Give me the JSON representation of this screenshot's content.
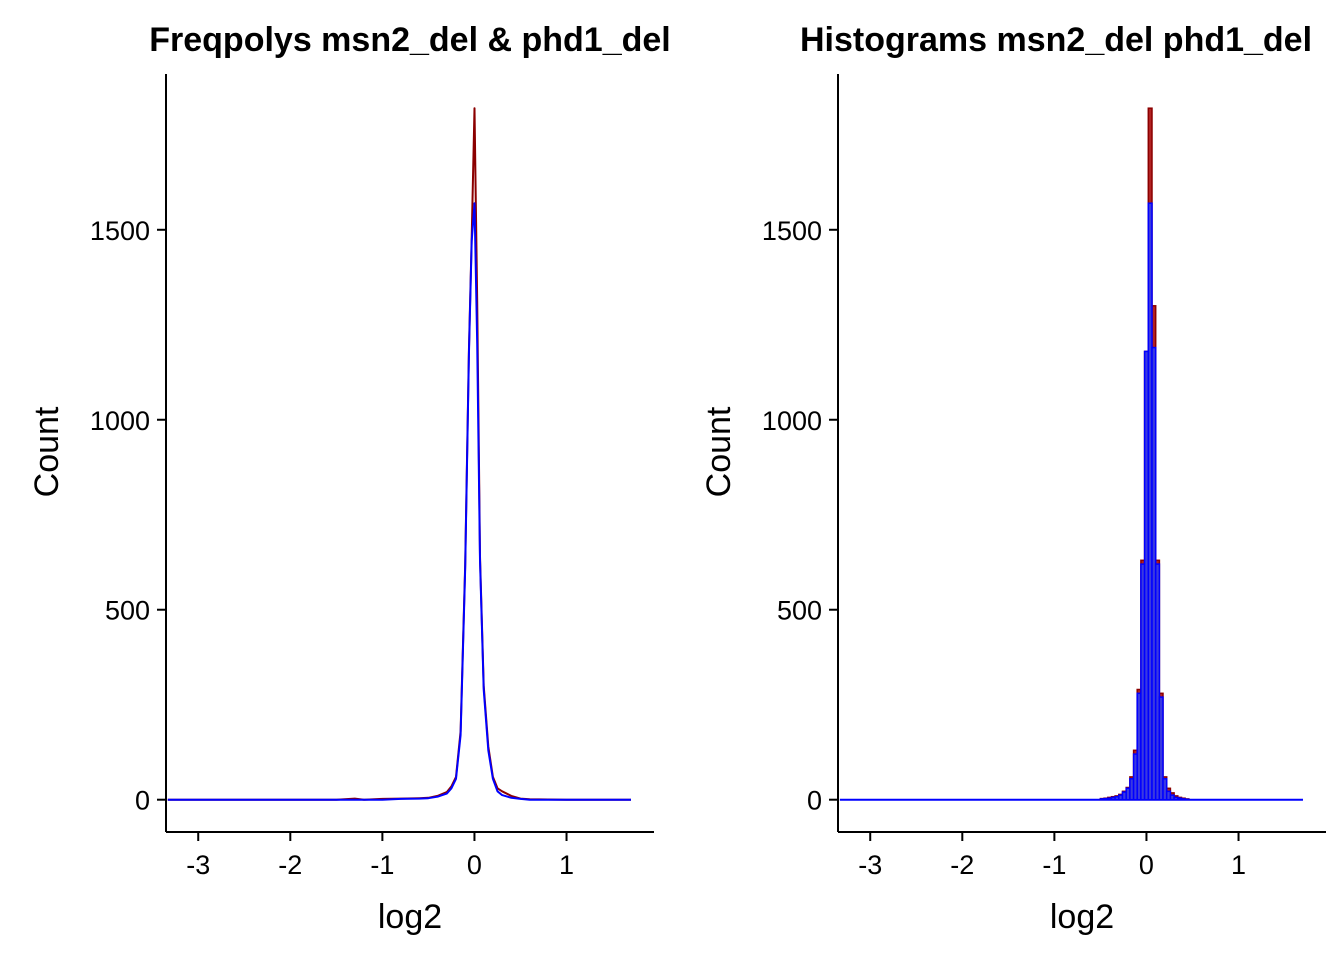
{
  "chart_data": [
    {
      "type": "line",
      "title": "Freqpolys msn2_del & phd1_del",
      "xlabel": "log2",
      "ylabel": "Count",
      "xlim": [
        -3.35,
        1.95
      ],
      "ylim": [
        -85,
        1910
      ],
      "xticks": [
        -3,
        -2,
        -1,
        0,
        1
      ],
      "yticks": [
        0,
        500,
        1000,
        1500
      ],
      "grid": false,
      "series": [
        {
          "color": "#8B0000",
          "x": [
            -3.33,
            -1.5,
            -1.3,
            -1.2,
            -1.0,
            -0.8,
            -0.6,
            -0.5,
            -0.4,
            -0.3,
            -0.25,
            -0.2,
            -0.15,
            -0.1,
            -0.06,
            -0.03,
            0.0,
            0.03,
            0.06,
            0.1,
            0.15,
            0.2,
            0.25,
            0.3,
            0.4,
            0.5,
            0.6,
            1.0,
            1.7
          ],
          "y": [
            0,
            0,
            3,
            0,
            2,
            3,
            4,
            5,
            10,
            20,
            35,
            60,
            180,
            620,
            1180,
            1480,
            1820,
            1310,
            640,
            300,
            140,
            60,
            30,
            22,
            10,
            3,
            1,
            0,
            0
          ]
        },
        {
          "color": "#0000FF",
          "x": [
            -3.33,
            -1.5,
            -1.0,
            -0.8,
            -0.6,
            -0.5,
            -0.4,
            -0.3,
            -0.25,
            -0.2,
            -0.15,
            -0.1,
            -0.06,
            -0.03,
            0.0,
            0.03,
            0.06,
            0.1,
            0.15,
            0.2,
            0.25,
            0.3,
            0.4,
            0.5,
            0.6,
            1.0,
            1.7
          ],
          "y": [
            0,
            0,
            0,
            2,
            3,
            4,
            8,
            16,
            30,
            55,
            170,
            610,
            1170,
            1470,
            1570,
            1200,
            630,
            290,
            130,
            55,
            22,
            12,
            5,
            2,
            0,
            0,
            0
          ]
        }
      ]
    },
    {
      "type": "bar",
      "title": "Histograms msn2_del phd1_del",
      "xlabel": "log2",
      "ylabel": "Count",
      "xlim": [
        -3.35,
        1.95
      ],
      "ylim": [
        -85,
        1910
      ],
      "xticks": [
        -3,
        -2,
        -1,
        0,
        1
      ],
      "yticks": [
        0,
        500,
        1000,
        1500
      ],
      "grid": false,
      "bin_width": 0.04,
      "series": [
        {
          "fill": "#B22222",
          "stroke": "#8B0000",
          "bins": [
            -0.5,
            -0.46,
            -0.42,
            -0.38,
            -0.34,
            -0.3,
            -0.26,
            -0.22,
            -0.18,
            -0.14,
            -0.1,
            -0.06,
            -0.02,
            0.02,
            0.06,
            0.1,
            0.14,
            0.18,
            0.22,
            0.26,
            0.3,
            0.34,
            0.38,
            0.42
          ],
          "values": [
            3,
            4,
            6,
            8,
            10,
            14,
            22,
            32,
            60,
            130,
            290,
            630,
            1180,
            1820,
            1300,
            630,
            280,
            60,
            30,
            18,
            10,
            6,
            4,
            2
          ]
        },
        {
          "fill": "#3A3AE0",
          "stroke": "#0000FF",
          "bins": [
            -0.5,
            -0.46,
            -0.42,
            -0.38,
            -0.34,
            -0.3,
            -0.26,
            -0.22,
            -0.18,
            -0.14,
            -0.1,
            -0.06,
            -0.02,
            0.02,
            0.06,
            0.1,
            0.14,
            0.18,
            0.22,
            0.26,
            0.3,
            0.34,
            0.38,
            0.42
          ],
          "values": [
            2,
            3,
            4,
            6,
            8,
            12,
            20,
            30,
            55,
            120,
            280,
            620,
            1180,
            1570,
            1190,
            620,
            270,
            55,
            22,
            12,
            6,
            4,
            2,
            1
          ]
        }
      ]
    }
  ]
}
